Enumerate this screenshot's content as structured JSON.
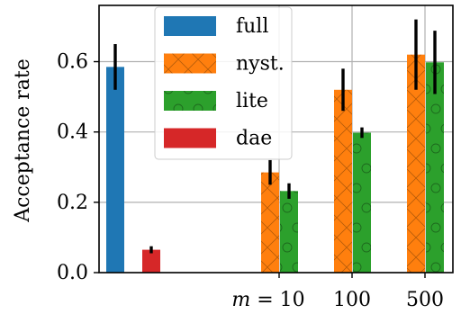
{
  "chart_data": {
    "type": "bar",
    "ylabel": "Acceptance rate",
    "xlabel": "",
    "ylim": [
      0,
      0.76
    ],
    "yticks": [
      0.0,
      0.2,
      0.4,
      0.6
    ],
    "ytick_labels": [
      "0.0",
      "0.2",
      "0.4",
      "0.6"
    ],
    "groups": [
      {
        "key": "g0",
        "label": ""
      },
      {
        "key": "g10",
        "label": "m = 10"
      },
      {
        "key": "g100",
        "label": "100"
      },
      {
        "key": "g500",
        "label": "500"
      }
    ],
    "grid": true,
    "legend_position": "top-center",
    "series": [
      {
        "name": "full",
        "color": "#1f77b4",
        "hatch": "none",
        "values": [
          0.585,
          null,
          null,
          null
        ],
        "errors": [
          0.065,
          null,
          null,
          null
        ]
      },
      {
        "name": "nyst.",
        "color": "#ff7f0e",
        "hatch": "cross",
        "values": [
          null,
          0.285,
          0.52,
          0.62
        ],
        "errors": [
          null,
          0.035,
          0.06,
          0.1
        ]
      },
      {
        "name": "lite",
        "color": "#2ca02c",
        "hatch": "circles",
        "values": [
          null,
          0.232,
          0.398,
          0.598
        ],
        "errors": [
          null,
          0.022,
          0.015,
          0.09
        ]
      },
      {
        "name": "dae",
        "color": "#d62728",
        "hatch": "none",
        "values": [
          0.065,
          null,
          null,
          null
        ],
        "errors": [
          0.01,
          null,
          null,
          null
        ]
      }
    ]
  }
}
